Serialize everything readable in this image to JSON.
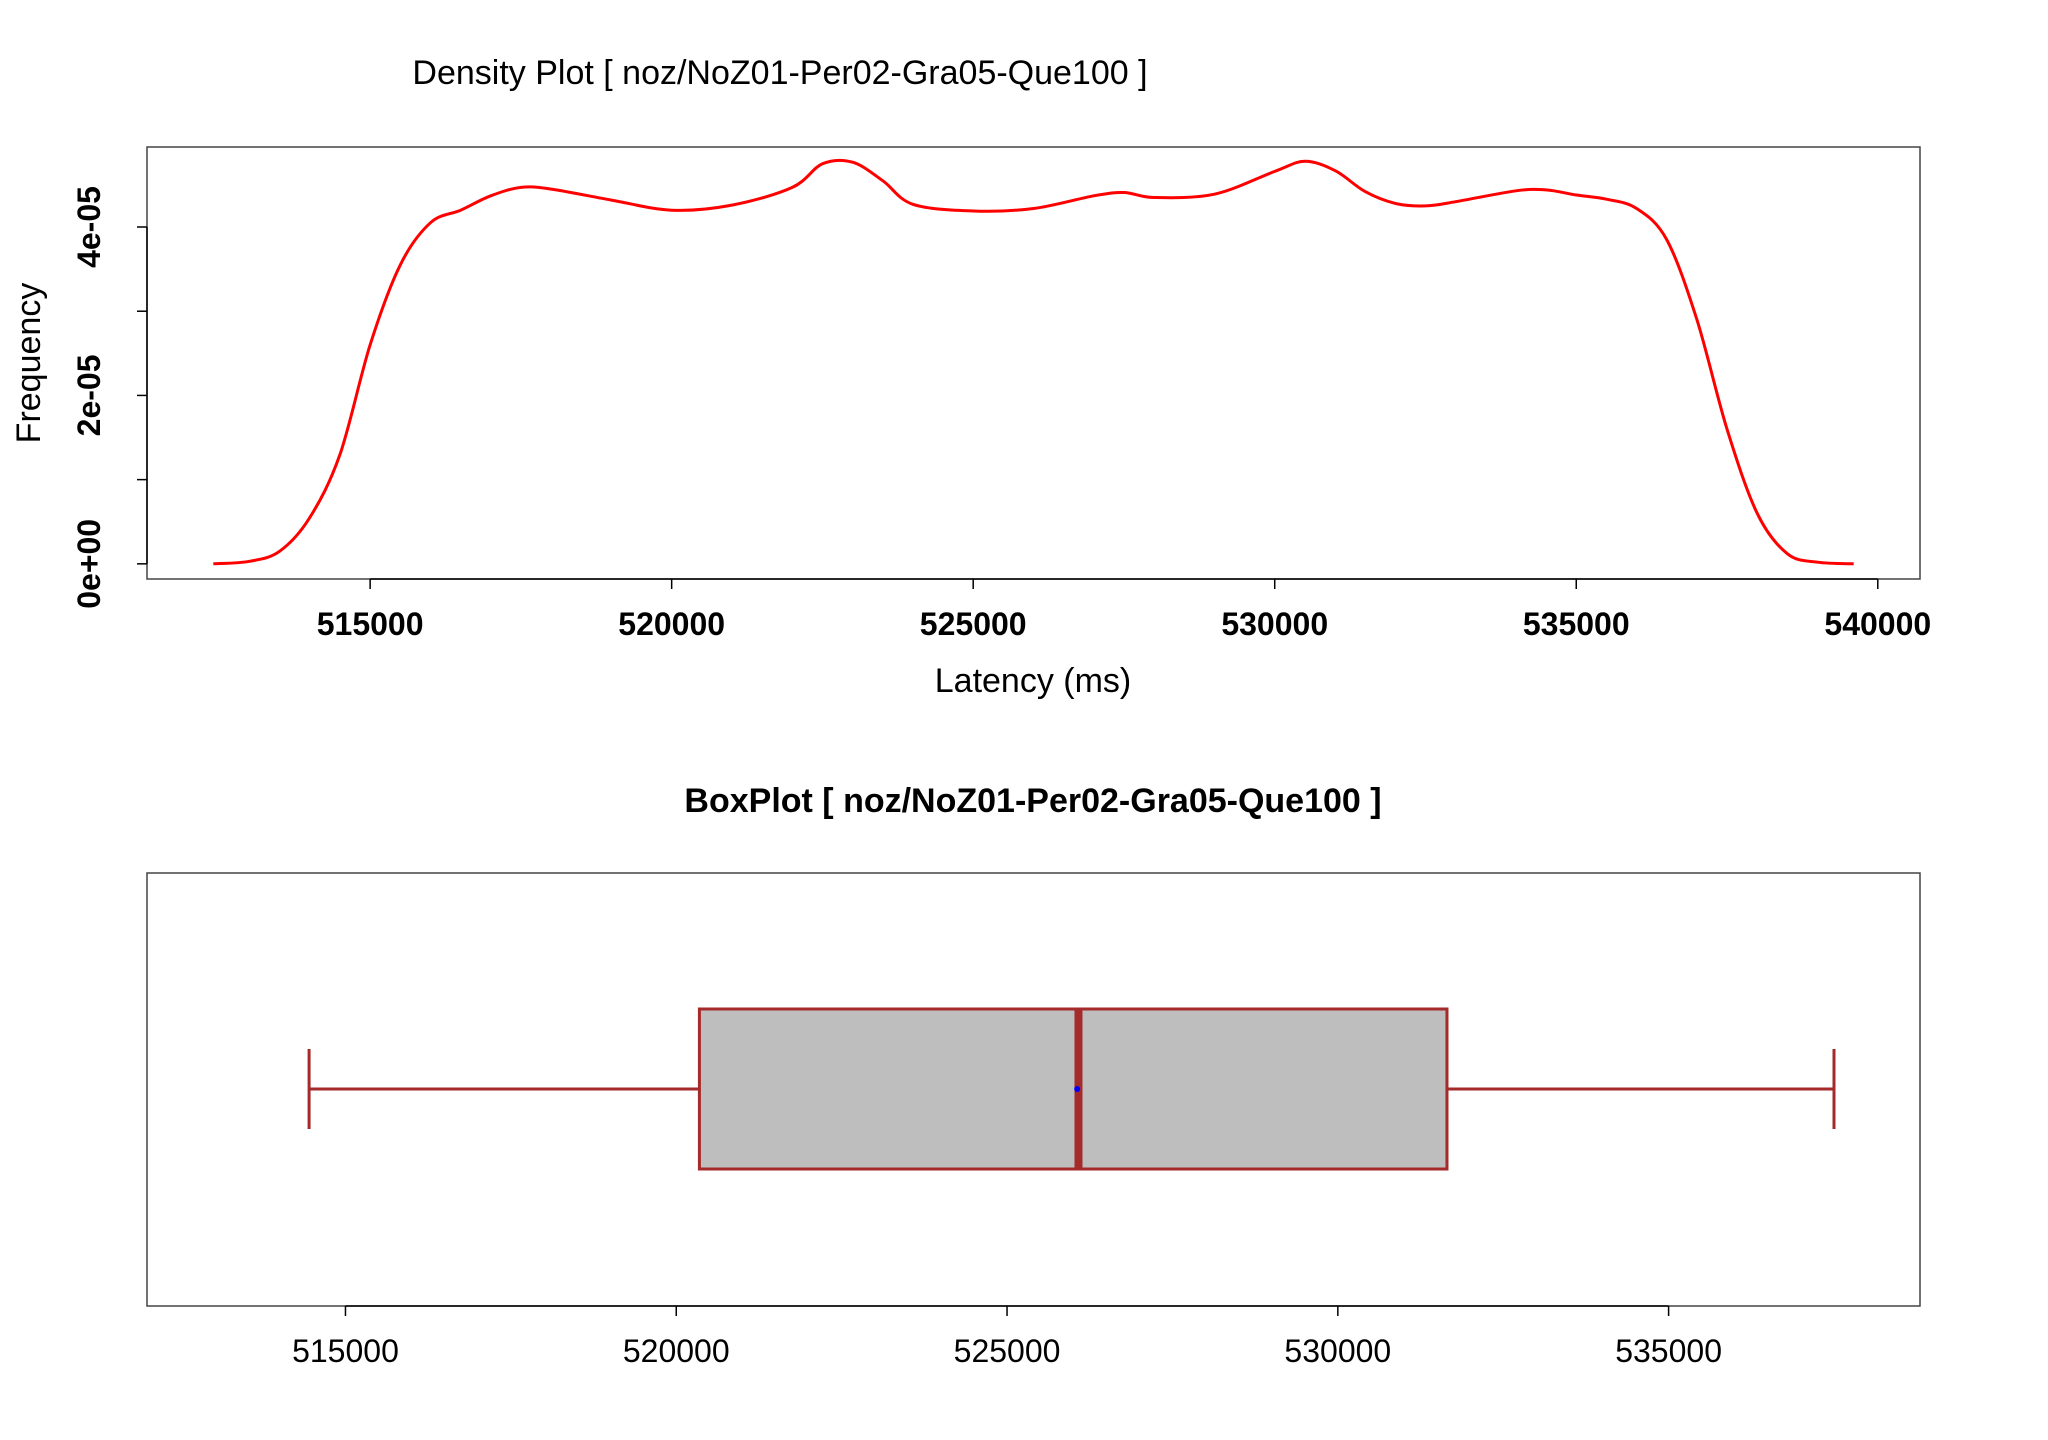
{
  "chart_data": [
    {
      "type": "line",
      "title": "Density Plot [ noz/NoZ01-Per02-Gra05-Que100 ]",
      "xlabel": "Latency (ms)",
      "ylabel": "Frequency",
      "xlim": [
        511300,
        540700
      ],
      "ylim": [
        -1.8e-06,
        4.95e-05
      ],
      "x_ticks": [
        515000,
        520000,
        525000,
        530000,
        535000,
        540000
      ],
      "x_tick_labels": [
        "515000",
        "520000",
        "525000",
        "530000",
        "535000",
        "540000"
      ],
      "y_ticks": [
        0,
        2e-05,
        4e-05
      ],
      "y_minor_ticks": [
        1e-05,
        3e-05
      ],
      "y_tick_labels": [
        "0e+00",
        "2e-05",
        "4e-05"
      ],
      "grid": false,
      "color": "#ff0000",
      "series": [
        {
          "x": [
            512400,
            513000,
            513500,
            514000,
            514500,
            515000,
            515500,
            516000,
            516500,
            517000,
            517500,
            518000,
            519000,
            520000,
            521000,
            522000,
            522500,
            523000,
            523500,
            524000,
            525000,
            526000,
            527000,
            527500,
            528000,
            529000,
            530000,
            530500,
            531000,
            531500,
            532000,
            532500,
            533000,
            534000,
            534500,
            535000,
            535500,
            536000,
            536500,
            537000,
            537500,
            538000,
            538500,
            539000,
            539600
          ],
          "y": [
            0.0,
            3e-07,
            1.5e-06,
            5.5e-06,
            1.3e-05,
            2.6e-05,
            3.55e-05,
            4.05e-05,
            4.2e-05,
            4.37e-05,
            4.47e-05,
            4.45e-05,
            4.32e-05,
            4.2e-05,
            4.26e-05,
            4.47e-05,
            4.75e-05,
            4.77e-05,
            4.55e-05,
            4.27e-05,
            4.19e-05,
            4.22e-05,
            4.37e-05,
            4.41e-05,
            4.35e-05,
            4.39e-05,
            4.66e-05,
            4.78e-05,
            4.67e-05,
            4.42e-05,
            4.28e-05,
            4.25e-05,
            4.3e-05,
            4.43e-05,
            4.44e-05,
            4.38e-05,
            4.33e-05,
            4.22e-05,
            3.85e-05,
            2.9e-05,
            1.6e-05,
            6e-06,
            1.2e-06,
            2e-07,
            0.0
          ]
        }
      ]
    },
    {
      "type": "box",
      "title": "BoxPlot [ noz/NoZ01-Per02-Gra05-Que100 ]",
      "xlim": [
        512000,
        538800
      ],
      "x_ticks": [
        515000,
        520000,
        525000,
        530000,
        535000
      ],
      "x_tick_labels": [
        "515000",
        "520000",
        "525000",
        "530000",
        "535000"
      ],
      "grid": false,
      "box_color": "#a52a2a",
      "fill_color": "#bebebe",
      "mean_color": "#0000ff",
      "stats": {
        "whisker_low": 514450,
        "q1": 520350,
        "median": 526080,
        "mean": 526060,
        "q3": 531650,
        "whisker_high": 537500
      }
    }
  ]
}
